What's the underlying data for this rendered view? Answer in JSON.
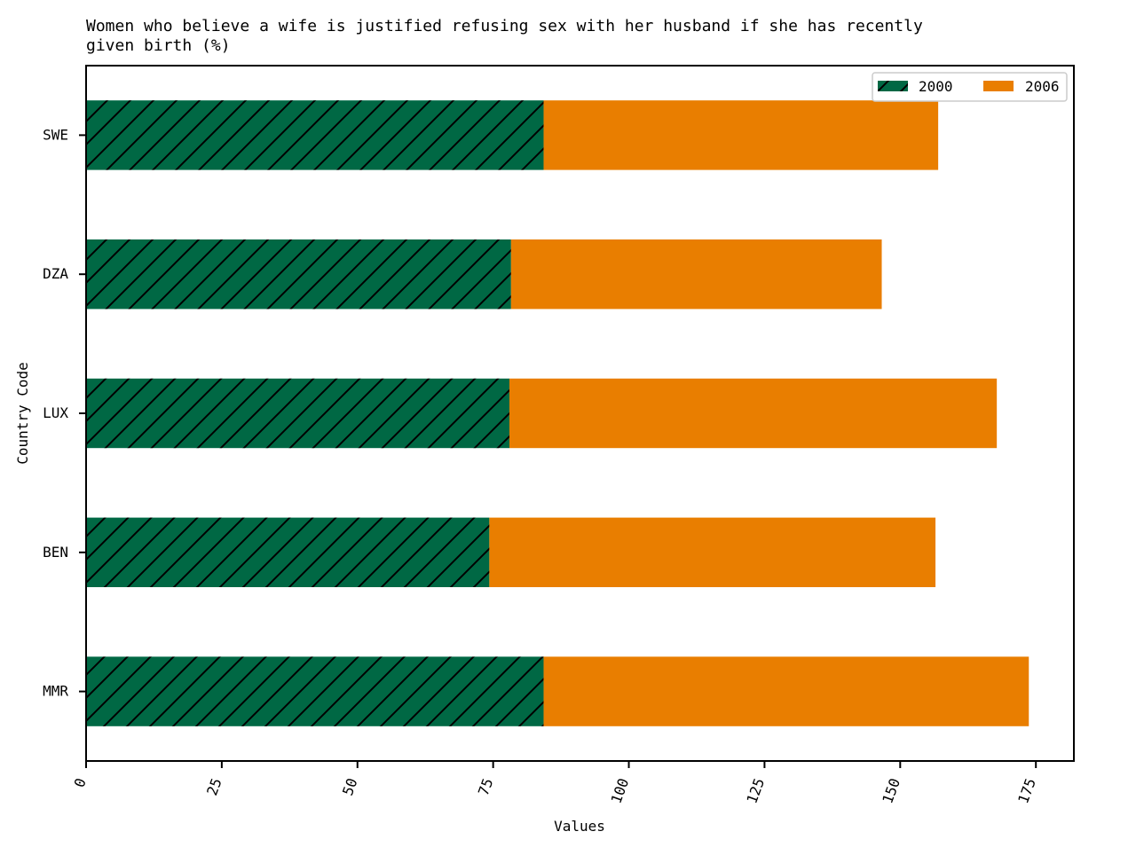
{
  "chart_data": {
    "type": "bar",
    "orientation": "horizontal",
    "stacked": true,
    "title": "Women who believe a wife is justified refusing sex with her husband if she has recently given birth (%)",
    "title_lines": [
      "Women who believe a wife is justified refusing sex with her husband if she has recently",
      "given birth (%)"
    ],
    "xlabel": "Values",
    "ylabel": "Country Code",
    "categories": [
      "MMR",
      "BEN",
      "LUX",
      "DZA",
      "SWE"
    ],
    "series": [
      {
        "name": "2000",
        "values": [
          84.3,
          74.3,
          78.0,
          78.3,
          84.3
        ],
        "color": "#006844",
        "hatch": "diagonal"
      },
      {
        "name": "2006",
        "values": [
          89.4,
          82.2,
          89.8,
          68.3,
          72.7
        ],
        "color": "#E97E00"
      }
    ],
    "xlim": [
      0,
      182
    ],
    "xticks": [
      0,
      25,
      50,
      75,
      100,
      125,
      150,
      175
    ],
    "xtick_labels": [
      "0",
      "25",
      "50",
      "75",
      "100",
      "125",
      "150",
      "175"
    ],
    "grid": false,
    "legend_position": "top-right"
  }
}
